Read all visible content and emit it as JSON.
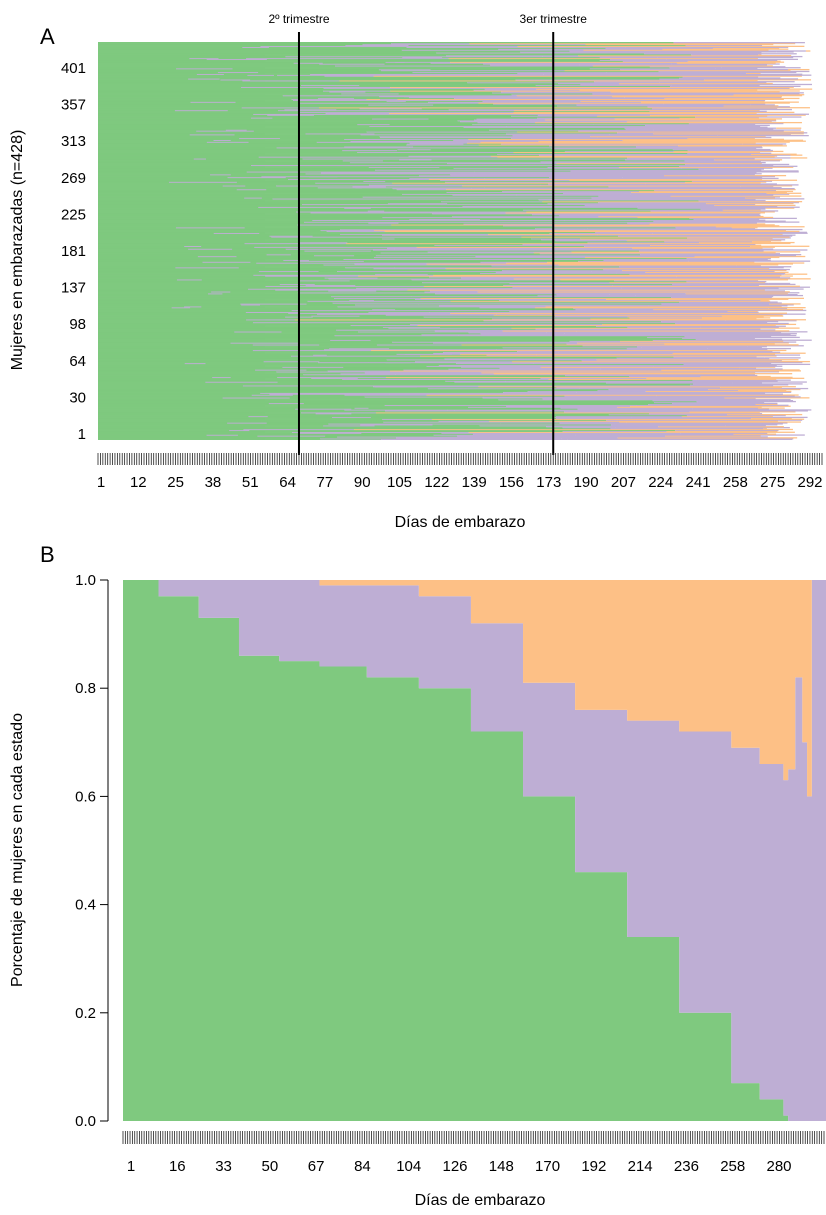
{
  "colors": {
    "green": "#7fc97f",
    "purple": "#beaed4",
    "orange": "#fdc086"
  },
  "chart_data": [
    {
      "panel_label": "A",
      "type": "heatmap",
      "xlabel": "Días de embarazo",
      "ylabel": "Mujeres en embarazadas (n=428)",
      "x_tick_labels": [
        "1",
        "12",
        "25",
        "38",
        "51",
        "64",
        "77",
        "90",
        "105",
        "122",
        "139",
        "156",
        "173",
        "190",
        "207",
        "224",
        "241",
        "258",
        "275",
        "292"
      ],
      "y_tick_labels": [
        "1",
        "30",
        "64",
        "98",
        "137",
        "181",
        "225",
        "269",
        "313",
        "357",
        "401"
      ],
      "xlim": [
        1,
        300
      ],
      "n_women": 428,
      "annotations": [
        {
          "text": "2º trimestre",
          "day": 84
        },
        {
          "text": "3er trimestre",
          "day": 189
        }
      ]
    },
    {
      "panel_label": "B",
      "type": "area",
      "xlabel": "Días de embarazo",
      "ylabel": "Porcentaje de mujeres en cada estado",
      "x_tick_labels": [
        "1",
        "16",
        "33",
        "50",
        "67",
        "84",
        "104",
        "126",
        "148",
        "170",
        "192",
        "214",
        "236",
        "258",
        "280"
      ],
      "y_tick_labels": [
        "0.0",
        "0.2",
        "0.4",
        "0.6",
        "0.8",
        "1.0"
      ],
      "ylim": [
        0,
        1
      ],
      "x": [
        1,
        16,
        33,
        50,
        67,
        84,
        104,
        126,
        148,
        170,
        192,
        214,
        236,
        258,
        270,
        280,
        282,
        285,
        288,
        290,
        292
      ],
      "series": [
        {
          "values": [
            1.0,
            0.97,
            0.93,
            0.86,
            0.85,
            0.84,
            0.82,
            0.8,
            0.72,
            0.6,
            0.46,
            0.34,
            0.2,
            0.07,
            0.04,
            0.01,
            0.0,
            0.0,
            0.0,
            0.0,
            0.0
          ]
        },
        {
          "values": [
            0.0,
            0.03,
            0.07,
            0.14,
            0.15,
            0.15,
            0.17,
            0.17,
            0.2,
            0.21,
            0.3,
            0.4,
            0.52,
            0.62,
            0.62,
            0.62,
            0.65,
            0.82,
            0.7,
            0.6,
            1.0
          ]
        },
        {
          "values": [
            0.0,
            0.0,
            0.0,
            0.0,
            0.0,
            0.01,
            0.01,
            0.03,
            0.08,
            0.19,
            0.24,
            0.26,
            0.28,
            0.31,
            0.34,
            0.37,
            0.35,
            0.18,
            0.3,
            0.4,
            0.0
          ]
        }
      ]
    }
  ]
}
